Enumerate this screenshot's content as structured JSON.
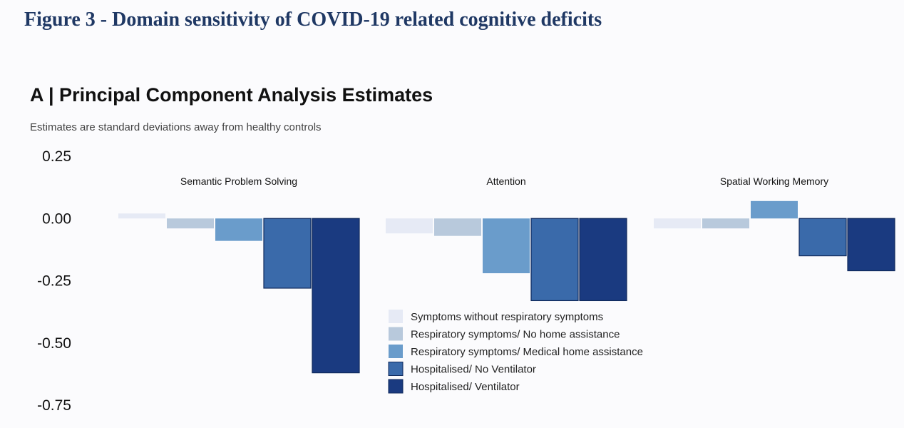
{
  "figure_title": "Figure 3 - Domain sensitivity of COVID-19 related cognitive deficits",
  "chart_data": {
    "type": "bar",
    "title": "A | Principal Component Analysis Estimates",
    "subtitle": "Estimates are standard deviations away from healthy controls",
    "xlabel": "",
    "ylabel": "",
    "ylim": [
      -0.75,
      0.25
    ],
    "yticks": [
      0.25,
      0.0,
      -0.25,
      -0.5,
      -0.75
    ],
    "ytick_labels": [
      "0.25",
      "0.00",
      "-0.25",
      "-0.50",
      "-0.75"
    ],
    "grid": false,
    "legend_position": "bottom-center",
    "categories": [
      "Semantic Problem Solving",
      "Attention",
      "Spatial Working Memory"
    ],
    "series": [
      {
        "name": "Symptoms without respiratory symptoms",
        "color": "#e6eaf5",
        "values": [
          0.02,
          -0.06,
          -0.04
        ]
      },
      {
        "name": "Respiratory symptoms/ No home assistance",
        "color": "#b8c9dc",
        "values": [
          -0.04,
          -0.07,
          -0.04
        ]
      },
      {
        "name": "Respiratory symptoms/ Medical home assistance",
        "color": "#6a9ccb",
        "values": [
          -0.09,
          -0.22,
          0.07
        ]
      },
      {
        "name": "Hospitalised/ No Ventilator",
        "color": "#3a6aaa",
        "values": [
          -0.28,
          -0.33,
          -0.15
        ]
      },
      {
        "name": "Hospitalised/ Ventilator",
        "color": "#1a3a80",
        "values": [
          -0.62,
          -0.33,
          -0.21
        ]
      }
    ]
  }
}
